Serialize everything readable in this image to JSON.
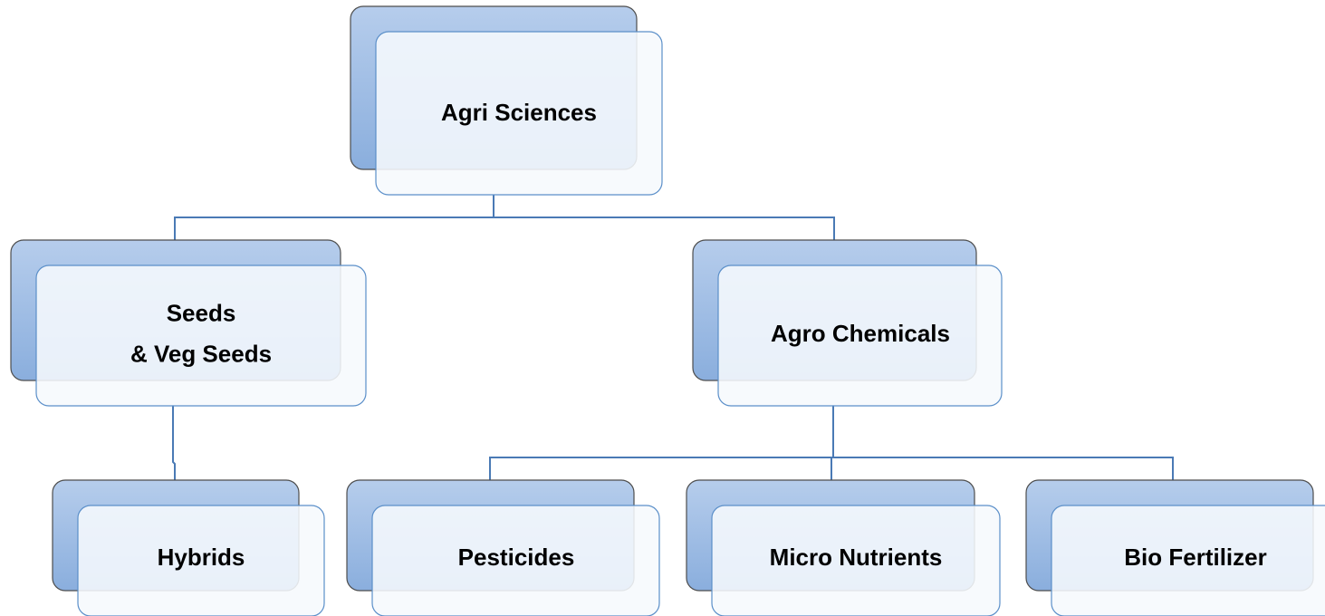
{
  "nodes": [
    {
      "lines": [
        "Agri Sciences"
      ]
    },
    {
      "lines": [
        "Seeds",
        "& Veg Seeds"
      ]
    },
    {
      "lines": [
        "Agro Chemicals"
      ]
    },
    {
      "lines": [
        "Hybrids"
      ]
    },
    {
      "lines": [
        "Pesticides"
      ]
    },
    {
      "lines": [
        "Micro Nutrients"
      ]
    },
    {
      "lines": [
        "Bio Fertilizer"
      ]
    }
  ]
}
